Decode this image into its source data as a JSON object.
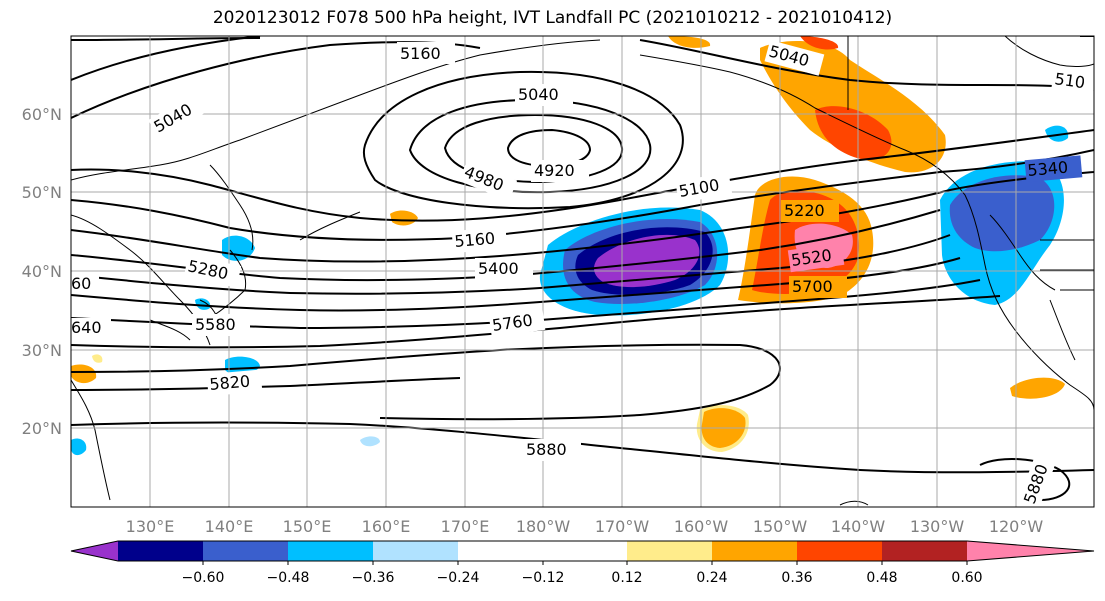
{
  "title": "2020123012 F078 500 hPa height, IVT Landfall PC (2021010212 - 2021010412)",
  "latitude_labels": [
    "60°N",
    "50°N",
    "40°N",
    "30°N",
    "20°N"
  ],
  "longitude_labels": [
    "130°E",
    "140°E",
    "150°E",
    "160°E",
    "170°E",
    "180°W",
    "170°W",
    "160°W",
    "150°W",
    "140°W",
    "130°W",
    "120°W"
  ],
  "colorbar": {
    "tick_labels": [
      "−0.60",
      "−0.48",
      "−0.36",
      "−0.24",
      "−0.12",
      "0.12",
      "0.24",
      "0.36",
      "0.48",
      "0.60"
    ],
    "colors": [
      "#9932cc",
      "#00008b",
      "#3a5fcd",
      "#00bfff",
      "#b0e2ff",
      "#ffffff",
      "#ffec8b",
      "#ffa500",
      "#ff4500",
      "#b22222",
      "#ff82ab"
    ]
  },
  "contour_labels": [
    "5160",
    "5040",
    "5040",
    "5040",
    "510",
    "4920",
    "4980",
    "5100",
    "5220",
    "5340",
    "5160",
    "5280",
    "5400",
    "5520",
    "5700",
    "60",
    "640",
    "5580",
    "5760",
    "5820",
    "5880",
    "5880"
  ]
}
